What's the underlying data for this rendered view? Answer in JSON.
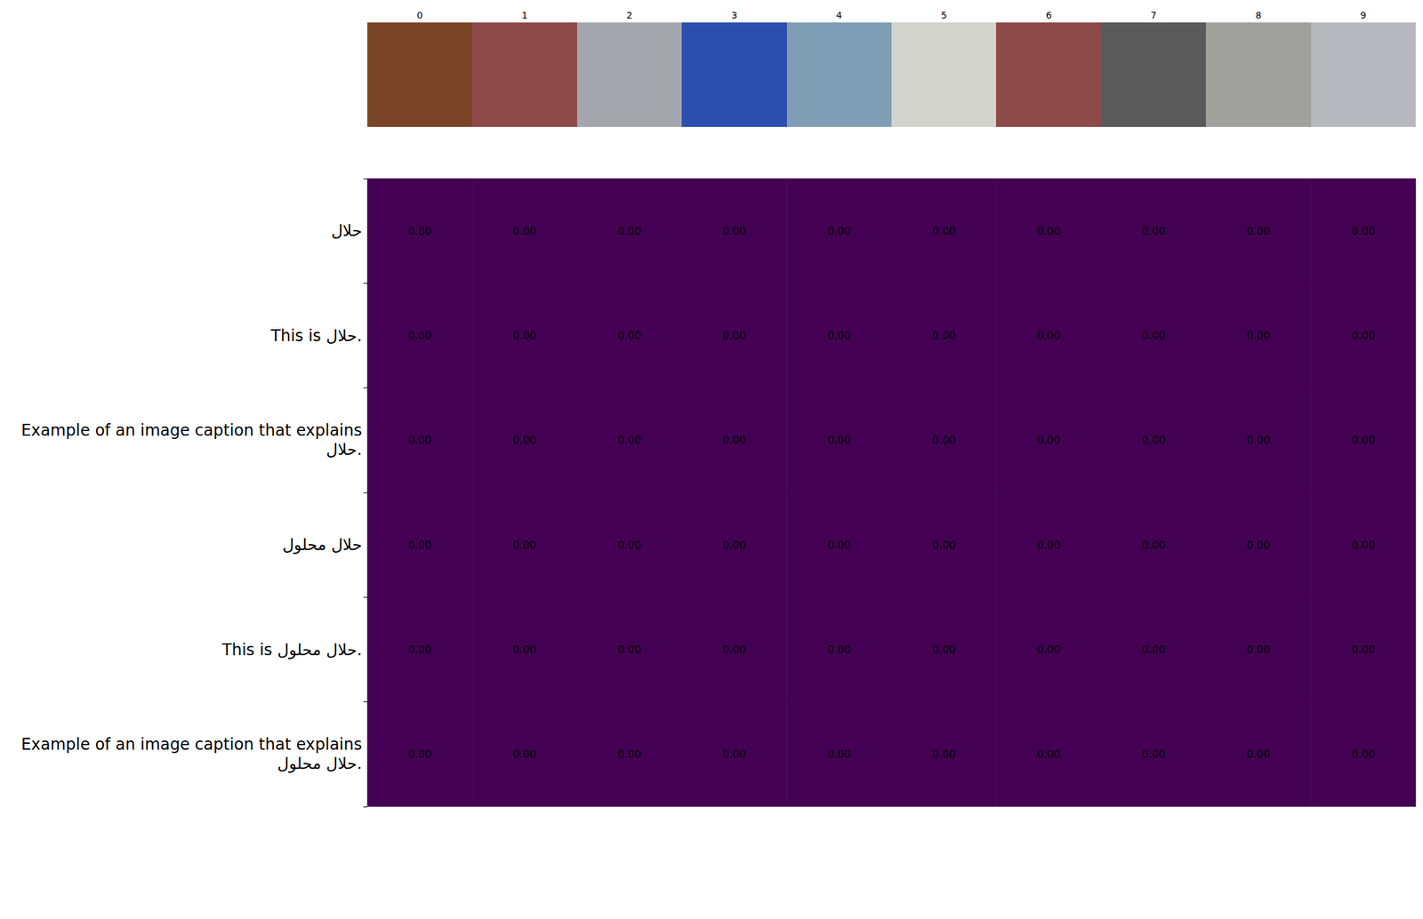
{
  "chart_data": {
    "type": "heatmap",
    "x": [
      0,
      1,
      2,
      3,
      4,
      5,
      6,
      7,
      8,
      9
    ],
    "categories": [
      "حلال",
      "This is حلال.",
      "Example of an image caption that explains\nحلال.",
      "حلال محلول",
      "This is حلال محلول.",
      "Example of an image caption that explains\nحلال محلول."
    ],
    "cells": [
      [
        0,
        0,
        0,
        0,
        0,
        0,
        0,
        0,
        0,
        0
      ],
      [
        0,
        0,
        0,
        0,
        0,
        0,
        0,
        0,
        0,
        0
      ],
      [
        0,
        0,
        0,
        0,
        0,
        0,
        0,
        0,
        0,
        0
      ],
      [
        0,
        0,
        0,
        0,
        0,
        0,
        0,
        0,
        0,
        0
      ],
      [
        0,
        0,
        0,
        0,
        0,
        0,
        0,
        0,
        0,
        0
      ],
      [
        0,
        0,
        0,
        0,
        0,
        0,
        0,
        0,
        0,
        0
      ]
    ],
    "cell_labels": [
      [
        "0.00",
        "0.00",
        "0.00",
        "0.00",
        "0.00",
        "0.00",
        "0.00",
        "0.00",
        "0.00",
        "0.00"
      ],
      [
        "0.00",
        "0.00",
        "0.00",
        "0.00",
        "0.00",
        "0.00",
        "0.00",
        "0.00",
        "0.00",
        "0.00"
      ],
      [
        "0.00",
        "0.00",
        "0.00",
        "0.00",
        "0.00",
        "0.00",
        "0.00",
        "0.00",
        "0.00",
        "0.00"
      ],
      [
        "0.00",
        "0.00",
        "0.00",
        "0.00",
        "0.00",
        "0.00",
        "0.00",
        "0.00",
        "0.00",
        "0.00"
      ],
      [
        "0.00",
        "0.00",
        "0.00",
        "0.00",
        "0.00",
        "0.00",
        "0.00",
        "0.00",
        "0.00",
        "0.00"
      ],
      [
        "0.00",
        "0.00",
        "0.00",
        "0.00",
        "0.00",
        "0.00",
        "0.00",
        "0.00",
        "0.00",
        "0.00"
      ]
    ],
    "color": "#440154",
    "data_labels": true
  }
}
